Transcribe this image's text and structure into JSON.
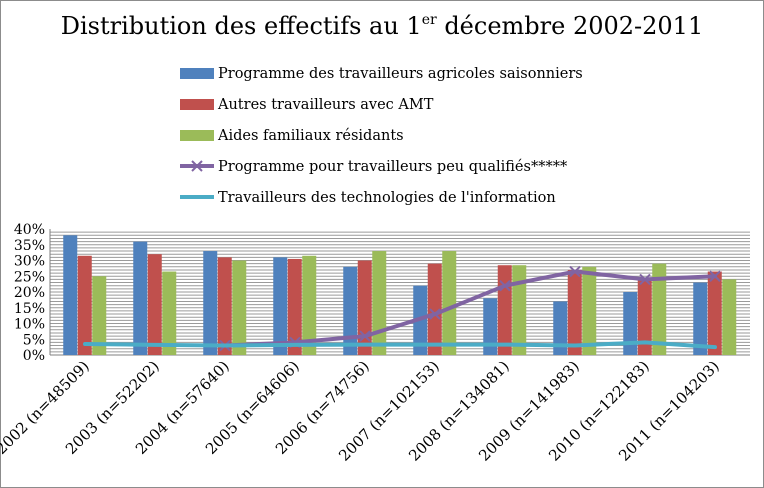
{
  "chart_data": {
    "type": "bar",
    "title_main": "Distribution des effectifs au 1",
    "title_sup": "er",
    "title_tail": " décembre 2002-2011",
    "categories": [
      "2002 (n=48509)",
      "2003 (n=52202)",
      "2004 (n=57640)",
      "2005 (n=64606)",
      "2006 (n=74756)",
      "2007 (n=102153)",
      "2008 (n=134081)",
      "2009 (n=141983)",
      "2010 (n=122183)",
      "2011 (n=104203)"
    ],
    "yticks": [
      "0%",
      "5%",
      "10%",
      "15%",
      "20%",
      "25%",
      "30%",
      "35%",
      "40%"
    ],
    "ylim": [
      0,
      40
    ],
    "grid": true,
    "legend_position": "top",
    "series": [
      {
        "name": "Programme des travailleurs agricoles saisonniers",
        "kind": "bar",
        "color": "#4f81bd",
        "values": [
          38,
          36,
          33,
          31,
          28,
          22,
          18,
          17,
          20,
          23
        ]
      },
      {
        "name": "Autres travailleurs avec AMT",
        "kind": "bar",
        "color": "#c0504d",
        "values": [
          31.5,
          32,
          31,
          30.5,
          30,
          29,
          28.5,
          27,
          24,
          26.5
        ]
      },
      {
        "name": "Aides familiaux résidants",
        "kind": "bar",
        "color": "#9bbb59",
        "values": [
          25,
          26.5,
          30,
          31.5,
          33,
          33,
          28.5,
          28,
          29,
          24
        ]
      },
      {
        "name": "Programme pour travailleurs peu qualifiés*****",
        "kind": "line",
        "marker": "x",
        "color": "#8064a2",
        "values": [
          null,
          null,
          3,
          4,
          6,
          13,
          22,
          26.5,
          24,
          25
        ]
      },
      {
        "name": "Travailleurs des technologies de l'information",
        "kind": "line",
        "color": "#4bacc6",
        "values": [
          3.5,
          3.2,
          3,
          3.2,
          3.3,
          3.3,
          3.3,
          3,
          4,
          2.5
        ]
      }
    ]
  }
}
